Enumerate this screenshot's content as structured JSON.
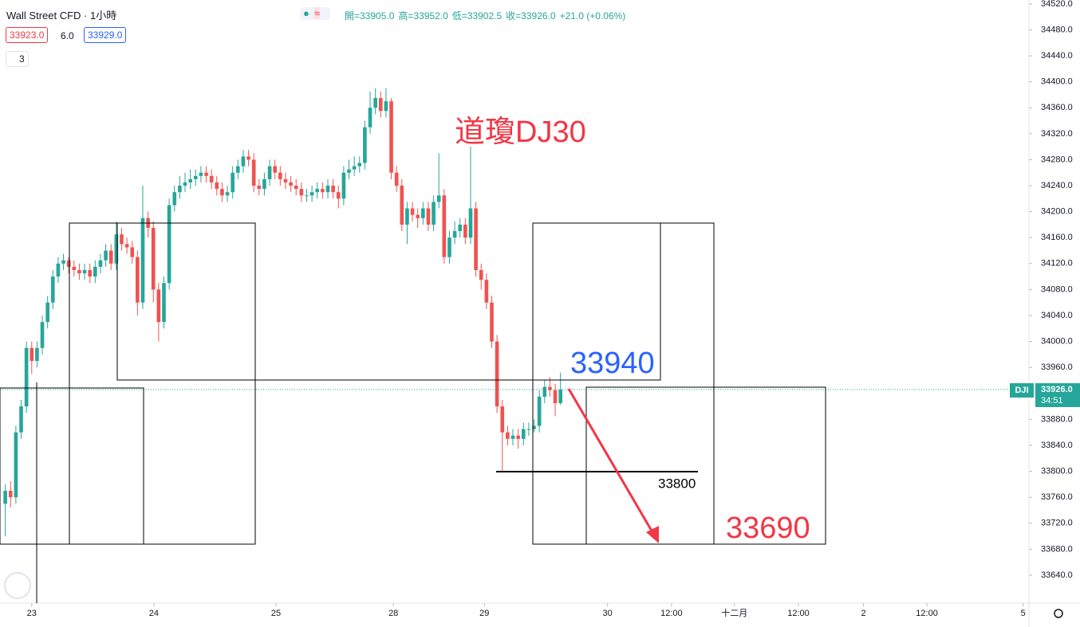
{
  "header": {
    "symbol": "Wall Street CFD · 1小時",
    "bid": "33923.0",
    "spread": "6.0",
    "ask": "33929.0",
    "indicators": "3",
    "ohlc": [
      "開=33905.0",
      "高=33952.0",
      "低=33902.5",
      "收=33926.0",
      "+21.0 (+0.06%)"
    ]
  },
  "chart_data": {
    "type": "candlestick",
    "up_color": "#26a69a",
    "down_color": "#ef5350",
    "grid": false,
    "x": [
      1,
      2,
      3,
      4,
      5,
      6,
      7,
      8,
      9,
      10,
      11,
      12,
      13,
      14,
      15,
      16,
      17,
      18,
      19,
      20,
      21,
      22,
      23,
      24,
      25,
      26,
      27,
      28,
      29,
      30,
      31,
      32,
      33,
      34,
      35,
      36,
      37,
      38,
      39,
      40,
      41,
      42,
      43,
      44,
      45,
      46,
      47,
      48,
      49,
      50,
      51,
      52,
      53,
      54,
      55,
      56,
      57,
      58,
      59,
      60,
      61,
      62,
      63,
      64,
      65,
      66,
      67,
      68,
      69,
      70,
      71,
      72,
      73,
      74,
      75,
      76,
      77,
      78,
      79,
      80,
      81,
      82,
      83,
      84,
      85,
      86,
      87,
      88,
      89,
      90,
      91,
      92,
      93,
      94,
      95,
      96,
      97,
      98,
      99,
      100,
      101,
      102,
      103,
      104,
      105,
      106
    ],
    "open": [
      33750,
      33770,
      33760,
      33860,
      33900,
      33990,
      33970,
      33990,
      34030,
      34060,
      34100,
      34120,
      34125,
      34115,
      34110,
      34105,
      34110,
      34100,
      34115,
      34125,
      34140,
      34120,
      34165,
      34150,
      34145,
      34130,
      34060,
      34190,
      34175,
      34080,
      34030,
      34090,
      34210,
      34230,
      34240,
      34245,
      34250,
      34255,
      34260,
      34255,
      34245,
      34235,
      34225,
      34230,
      34260,
      34270,
      34285,
      34280,
      34240,
      34235,
      34250,
      34270,
      34260,
      34250,
      34245,
      34240,
      34235,
      34225,
      34225,
      34230,
      34235,
      34230,
      34240,
      34230,
      34220,
      34260,
      34265,
      34270,
      34275,
      34330,
      34360,
      34375,
      34355,
      34370,
      34260,
      34240,
      34180,
      34205,
      34195,
      34190,
      34205,
      34180,
      34215,
      34225,
      34130,
      34160,
      34170,
      34180,
      34160,
      34205,
      34110,
      34095,
      34060,
      34000,
      33900,
      33860,
      33850,
      33855,
      33850,
      33865,
      33865,
      33870,
      33915,
      33930,
      33925,
      33905
    ],
    "high": [
      33780,
      33785,
      33870,
      33910,
      34000,
      34000,
      34000,
      34040,
      34070,
      34110,
      34130,
      34135,
      34130,
      34125,
      34120,
      34120,
      34120,
      34125,
      34135,
      34150,
      34150,
      34185,
      34175,
      34160,
      34155,
      34140,
      34240,
      34200,
      34185,
      34090,
      34100,
      34220,
      34240,
      34255,
      34260,
      34265,
      34265,
      34270,
      34270,
      34265,
      34255,
      34245,
      34240,
      34270,
      34280,
      34295,
      34295,
      34290,
      34250,
      34260,
      34280,
      34280,
      34270,
      34260,
      34255,
      34250,
      34245,
      34235,
      34240,
      34245,
      34245,
      34250,
      34250,
      34240,
      34270,
      34280,
      34285,
      34285,
      34340,
      34385,
      34390,
      34385,
      34390,
      34375,
      34270,
      34250,
      34215,
      34215,
      34205,
      34215,
      34215,
      34225,
      34290,
      34235,
      34170,
      34185,
      34190,
      34190,
      34300,
      34215,
      34120,
      34105,
      34070,
      34010,
      33910,
      33870,
      33865,
      33865,
      33875,
      33875,
      33880,
      33925,
      33940,
      33945,
      33935,
      33952
    ],
    "low": [
      33700,
      33745,
      33750,
      33850,
      33890,
      33950,
      33960,
      33980,
      34020,
      34050,
      34090,
      34110,
      34105,
      34100,
      34095,
      34095,
      34090,
      34090,
      34105,
      34115,
      34110,
      34110,
      34140,
      34135,
      34120,
      34040,
      34050,
      34160,
      34060,
      34000,
      34020,
      34080,
      34200,
      34220,
      34230,
      34235,
      34240,
      34245,
      34245,
      34235,
      34225,
      34215,
      34215,
      34220,
      34250,
      34260,
      34270,
      34230,
      34225,
      34225,
      34240,
      34250,
      34240,
      34235,
      34230,
      34225,
      34215,
      34215,
      34215,
      34220,
      34220,
      34220,
      34220,
      34205,
      34210,
      34250,
      34255,
      34260,
      34265,
      34320,
      34350,
      34345,
      34345,
      34250,
      34230,
      34170,
      34150,
      34185,
      34175,
      34180,
      34170,
      34170,
      34205,
      34120,
      34120,
      34150,
      34160,
      34150,
      34150,
      34100,
      34080,
      34050,
      33990,
      33890,
      33800,
      33840,
      33840,
      33835,
      33840,
      33855,
      33860,
      33860,
      33905,
      33915,
      33885,
      33902.5
    ],
    "close": [
      33770,
      33760,
      33860,
      33900,
      33990,
      33970,
      33990,
      34030,
      34060,
      34100,
      34120,
      34125,
      34115,
      34110,
      34105,
      34110,
      34100,
      34115,
      34125,
      34140,
      34120,
      34165,
      34150,
      34145,
      34130,
      34060,
      34190,
      34175,
      34080,
      34030,
      34090,
      34210,
      34230,
      34240,
      34245,
      34250,
      34255,
      34260,
      34255,
      34245,
      34235,
      34225,
      34230,
      34260,
      34270,
      34285,
      34280,
      34240,
      34235,
      34250,
      34270,
      34260,
      34250,
      34245,
      34240,
      34235,
      34225,
      34225,
      34230,
      34235,
      34230,
      34240,
      34230,
      34220,
      34260,
      34265,
      34270,
      34275,
      34330,
      34360,
      34375,
      34355,
      34370,
      34260,
      34240,
      34180,
      34205,
      34195,
      34190,
      34205,
      34180,
      34215,
      34225,
      34130,
      34160,
      34170,
      34180,
      34160,
      34205,
      34110,
      34095,
      34060,
      34000,
      33900,
      33860,
      33850,
      33855,
      33850,
      33865,
      33865,
      33870,
      33915,
      33930,
      33925,
      33905,
      33926
    ],
    "xlim": [
      0,
      194.6
    ],
    "xticks": [
      {
        "value": 6.0,
        "label": "23"
      },
      {
        "value": 29.1,
        "label": "24"
      },
      {
        "value": 52.2,
        "label": "25"
      },
      {
        "value": 74.4,
        "label": "28"
      },
      {
        "value": 91.6,
        "label": "29"
      },
      {
        "value": 114.9,
        "label": "30"
      },
      {
        "value": 127.0,
        "label": "12:00"
      },
      {
        "value": 138.9,
        "label": "十二月"
      },
      {
        "value": 151.0,
        "label": "12:00"
      },
      {
        "value": 163.3,
        "label": "2"
      },
      {
        "value": 175.3,
        "label": "12:00"
      },
      {
        "value": 193.5,
        "label": "5"
      }
    ],
    "ylim": [
      33597,
      34526
    ],
    "yticks": [
      {
        "value": 34520,
        "label": "34520.0"
      },
      {
        "value": 34480,
        "label": "34480.0"
      },
      {
        "value": 34440,
        "label": "34440.0"
      },
      {
        "value": 34400,
        "label": "34400.0"
      },
      {
        "value": 34360,
        "label": "34360.0"
      },
      {
        "value": 34320,
        "label": "34320.0"
      },
      {
        "value": 34280,
        "label": "34280.0"
      },
      {
        "value": 34240,
        "label": "34240.0"
      },
      {
        "value": 34200,
        "label": "34200.0"
      },
      {
        "value": 34160,
        "label": "34160.0"
      },
      {
        "value": 34120,
        "label": "34120.0"
      },
      {
        "value": 34080,
        "label": "34080.0"
      },
      {
        "value": 34040,
        "label": "34040.0"
      },
      {
        "value": 34000,
        "label": "34000.0"
      },
      {
        "value": 33960,
        "label": "33960.0"
      },
      {
        "value": 33920,
        "label": "33920.0"
      },
      {
        "value": 33880,
        "label": "33880.0"
      },
      {
        "value": 33840,
        "label": "33840.0"
      },
      {
        "value": 33800,
        "label": "33800.0"
      },
      {
        "value": 33760,
        "label": "33760.0"
      },
      {
        "value": 33720,
        "label": "33720.0"
      },
      {
        "value": 33680,
        "label": "33680.0"
      },
      {
        "value": 33640,
        "label": "33640.0"
      }
    ],
    "price_tag": {
      "symbol": "DJI",
      "price": "33926.0",
      "countdown": "34:51"
    },
    "annotations": {
      "title": "道瓊DJ30",
      "level_high": "33940",
      "level_mid": "33800",
      "level_low": "33690"
    }
  }
}
